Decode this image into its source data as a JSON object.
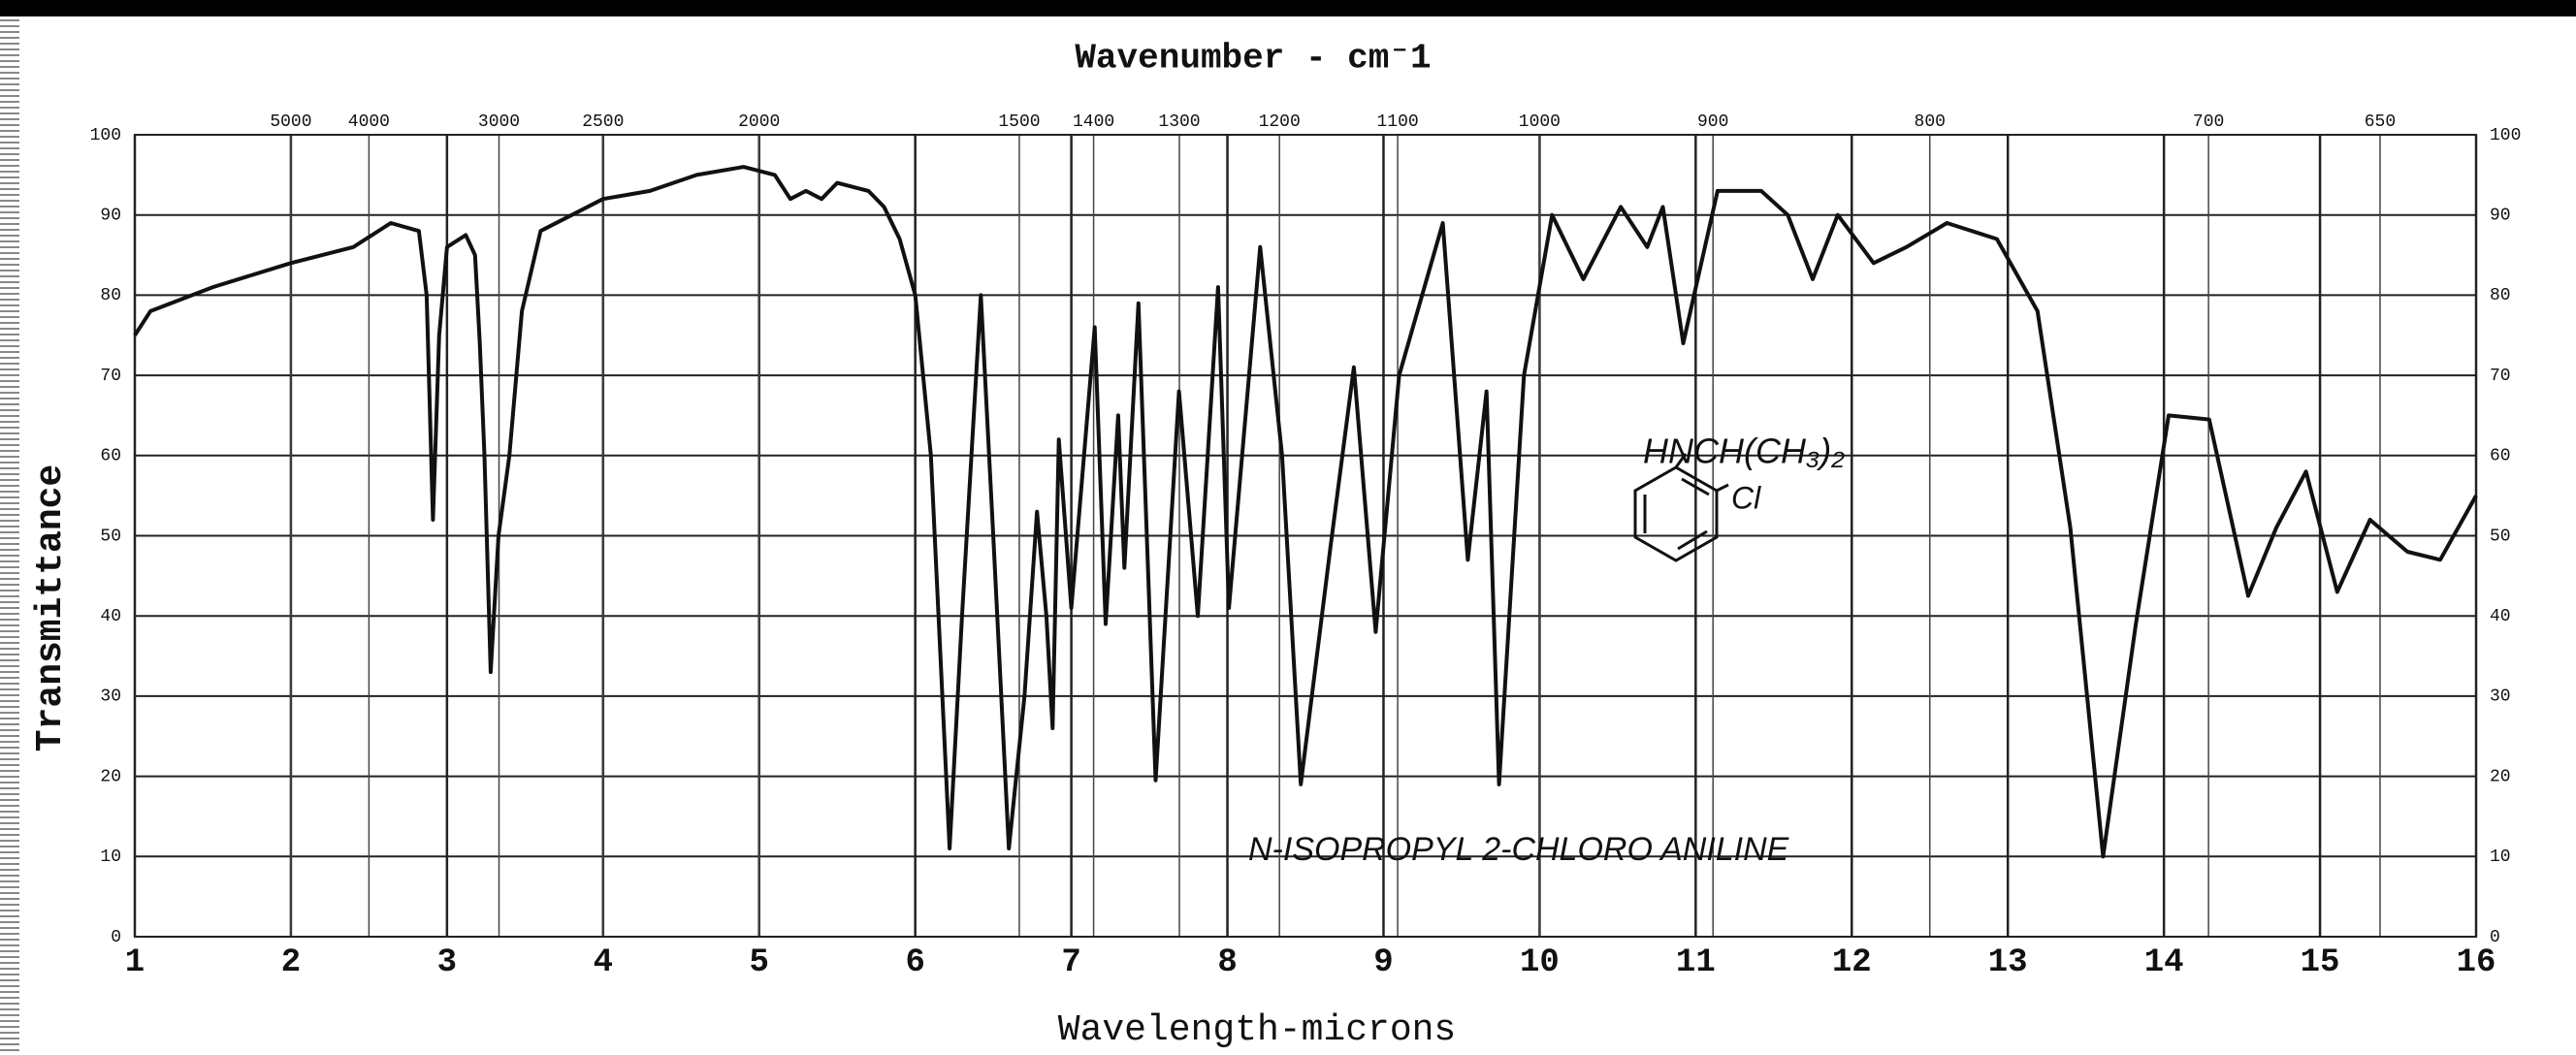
{
  "chart_data": {
    "type": "line",
    "title": "Wavenumber - cm⁻1",
    "x_label": "Wavelength-microns",
    "y_label": "Transmittance",
    "annotations": [
      "N-ISOPROPYL 2-CHLORO ANILINE",
      "HNCH(CH₃)₂",
      "Cl"
    ],
    "x": [
      1.0,
      1.1,
      1.5,
      2.0,
      2.4,
      2.64,
      2.82,
      2.87,
      2.91,
      2.95,
      3.0,
      3.12,
      3.18,
      3.21,
      3.24,
      3.28,
      3.33,
      3.4,
      3.48,
      3.6,
      3.8,
      4.0,
      4.3,
      4.6,
      4.9,
      5.1,
      5.2,
      5.3,
      5.4,
      5.5,
      5.7,
      5.8,
      5.9,
      6.0,
      6.1,
      6.22,
      6.3,
      6.42,
      6.5,
      6.6,
      6.7,
      6.78,
      6.84,
      6.88,
      6.92,
      7.0,
      7.15,
      7.22,
      7.3,
      7.34,
      7.43,
      7.54,
      7.69,
      7.81,
      7.94,
      8.01,
      8.21,
      8.35,
      8.47,
      8.66,
      8.81,
      8.95,
      9.1,
      9.38,
      9.54,
      9.66,
      9.74,
      9.9,
      10.08,
      10.28,
      10.52,
      10.69,
      10.79,
      10.92,
      11.14,
      11.42,
      11.59,
      11.75,
      11.91,
      12.14,
      12.35,
      12.61,
      12.93,
      13.19,
      13.4,
      13.61,
      13.82,
      14.03,
      14.29,
      14.54,
      14.72,
      14.91,
      15.11,
      15.32,
      15.56,
      15.77,
      16.0
    ],
    "values": [
      75,
      78,
      81,
      84,
      86,
      89,
      88,
      80,
      52,
      75,
      86,
      87.5,
      85,
      74,
      60,
      33,
      50,
      60,
      78,
      88,
      90,
      92,
      93,
      95,
      96,
      95,
      92,
      93,
      92,
      94,
      93,
      91,
      87,
      80,
      60,
      11,
      40,
      80,
      50,
      11,
      30,
      53,
      40,
      26,
      62,
      41,
      76,
      39,
      65,
      46,
      79,
      19.5,
      68,
      40,
      81,
      41,
      86,
      60,
      19,
      48.5,
      71,
      38,
      70,
      89,
      47,
      68,
      19,
      70,
      90,
      82,
      91,
      86,
      91,
      74,
      93,
      93,
      90,
      82,
      90,
      84,
      86,
      89,
      87,
      78,
      51,
      10,
      39,
      65,
      64.5,
      42.5,
      51,
      58,
      43,
      52,
      48,
      47,
      55
    ],
    "color": "#111111",
    "xlim": [
      1,
      16
    ],
    "xticks": [
      1,
      2,
      3,
      4,
      5,
      6,
      7,
      8,
      9,
      10,
      11,
      12,
      13,
      14,
      15,
      16
    ],
    "x2ticks": [
      5000,
      4000,
      3000,
      2500,
      2000,
      1500,
      1400,
      1300,
      1200,
      1100,
      1000,
      900,
      800,
      700,
      650
    ],
    "ylim": [
      0,
      100
    ],
    "yticks": [
      0,
      10,
      20,
      30,
      40,
      50,
      60,
      70,
      80,
      90,
      100
    ],
    "grid": true
  }
}
